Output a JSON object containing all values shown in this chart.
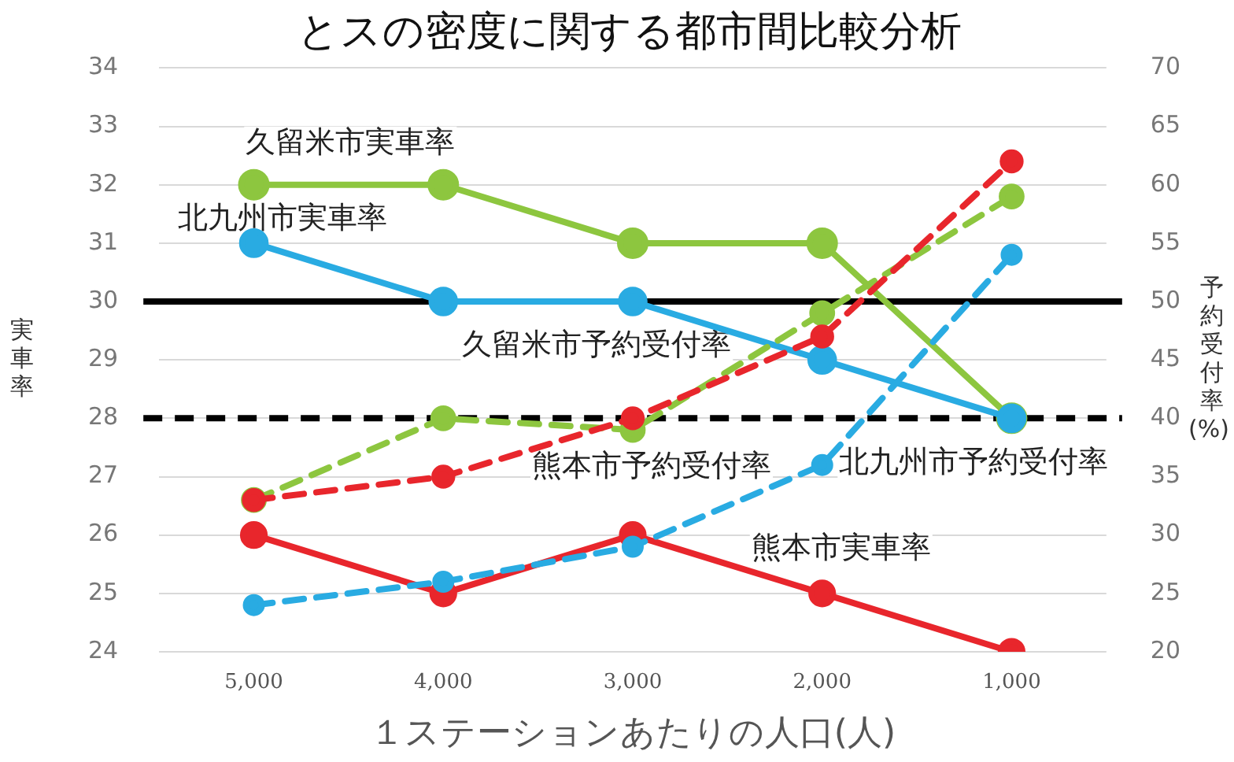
{
  "chart_data": {
    "type": "line",
    "title": "とスの密度に関する都市間比較分析",
    "xlabel": "１ステーションあたりの人口(人)",
    "ylabel": "実車率",
    "y2label": "予約受付率(%)",
    "categories": [
      "5,000",
      "4,000",
      "3,000",
      "2,000",
      "1,000"
    ],
    "ylim": [
      24,
      34
    ],
    "yticks": [
      24,
      25,
      26,
      27,
      28,
      29,
      30,
      31,
      32,
      33,
      34
    ],
    "y2lim": [
      20,
      70
    ],
    "y2ticks": [
      20,
      25,
      30,
      35,
      40,
      45,
      50,
      55,
      60,
      65,
      70
    ],
    "grid": "y",
    "legend": false,
    "marker": "circle",
    "series": [
      {
        "name": "久留米市実車率",
        "color": "#8dc63f",
        "values": [
          32,
          32,
          31,
          31,
          28
        ],
        "line_style": "solid"
      },
      {
        "name": "北九州市実車率",
        "color": "#29abe2",
        "values": [
          31,
          30,
          30,
          29,
          28
        ],
        "line_style": "solid"
      },
      {
        "name": "熊本市実車率",
        "color": "#e8262c",
        "values": [
          26,
          25,
          26,
          25,
          24
        ],
        "line_style": "solid"
      },
      {
        "name": "久留米市予約受付率",
        "color": "#8dc63f",
        "values": [
          33,
          40,
          39,
          49,
          59
        ],
        "axis": "y2",
        "line_style": "dashed"
      },
      {
        "name": "熊本市予約受付率",
        "color": "#e8262c",
        "values": [
          33,
          35,
          40,
          47,
          62
        ],
        "axis": "y2",
        "line_style": "dashed"
      },
      {
        "name": "北九州市予約受付率",
        "color": "#29abe2",
        "values": [
          24,
          26,
          29,
          36,
          54
        ],
        "axis": "y2",
        "line_style": "dashed"
      }
    ],
    "ref_lines": [
      {
        "axis": "y",
        "value": 30,
        "color": "#000000",
        "line_style": "solid"
      },
      {
        "axis": "y",
        "value": 28,
        "color": "#000000",
        "line_style": "dashed"
      }
    ]
  }
}
